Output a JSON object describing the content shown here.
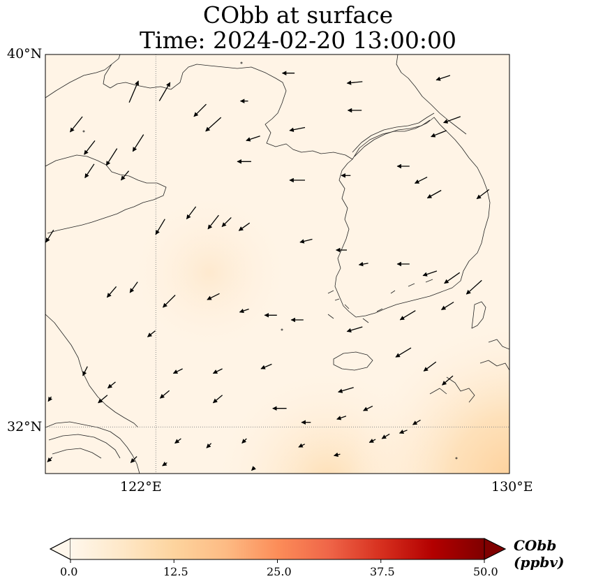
{
  "title": {
    "line1": "CObb at surface",
    "line2": "Time: 2024-02-20 13:00:00"
  },
  "map": {
    "lon_range": [
      119.5,
      130
    ],
    "lat_range": [
      31,
      40
    ],
    "projection": "PlateCarree",
    "gridlines": {
      "lon": [
        122
      ],
      "lat": [
        32
      ],
      "style": "dotted"
    },
    "lon_tick_labels": [
      "122°E",
      "130°E"
    ],
    "lat_tick_labels": [
      "40°N",
      "32°N"
    ],
    "field_background": "#fff4e6",
    "field_highlight": "#fed9a6",
    "wind_vectors": [
      [
        125.0,
        39.6,
        -0.8,
        0.0
      ],
      [
        126.5,
        39.4,
        -1.0,
        -0.1
      ],
      [
        128.5,
        39.5,
        -0.9,
        -0.3
      ],
      [
        124.0,
        39.0,
        -0.5,
        0.0
      ],
      [
        126.5,
        38.8,
        -0.9,
        0.0
      ],
      [
        122.2,
        39.2,
        0.7,
        1.2
      ],
      [
        121.5,
        39.2,
        0.6,
        1.4
      ],
      [
        123.0,
        38.8,
        -0.8,
        -0.8
      ],
      [
        123.3,
        38.5,
        -1.0,
        -0.9
      ],
      [
        128.4,
        38.3,
        -1.0,
        -0.4
      ],
      [
        128.7,
        38.6,
        -1.1,
        -0.4
      ],
      [
        125.2,
        38.4,
        -1.0,
        -0.2
      ],
      [
        124.2,
        38.2,
        -0.9,
        -0.3
      ],
      [
        121.6,
        38.1,
        -0.7,
        -1.1
      ],
      [
        121.0,
        37.8,
        -0.7,
        -1.1
      ],
      [
        120.2,
        38.5,
        -0.8,
        -1.0
      ],
      [
        120.5,
        38.0,
        -0.7,
        -0.9
      ],
      [
        120.5,
        37.5,
        -0.6,
        -0.9
      ],
      [
        121.3,
        37.4,
        -0.5,
        -0.6
      ],
      [
        124.0,
        37.7,
        -0.9,
        0.0
      ],
      [
        125.2,
        37.3,
        -1.0,
        0.0
      ],
      [
        126.3,
        37.4,
        -0.6,
        0.0
      ],
      [
        127.6,
        37.6,
        -0.8,
        0.0
      ],
      [
        128.0,
        37.3,
        -0.8,
        -0.4
      ],
      [
        128.3,
        37.0,
        -0.9,
        -0.5
      ],
      [
        129.4,
        37.0,
        -0.8,
        -0.6
      ],
      [
        123.3,
        36.4,
        -0.7,
        -0.9
      ],
      [
        122.1,
        36.3,
        -0.6,
        -1.0
      ],
      [
        122.8,
        36.6,
        -0.6,
        -0.8
      ],
      [
        123.6,
        36.4,
        -0.6,
        -0.6
      ],
      [
        124.0,
        36.3,
        -0.7,
        -0.5
      ],
      [
        125.4,
        36.0,
        -0.8,
        -0.2
      ],
      [
        126.2,
        35.8,
        -0.7,
        0.0
      ],
      [
        126.7,
        35.5,
        -0.6,
        -0.1
      ],
      [
        127.6,
        35.5,
        -0.8,
        0.0
      ],
      [
        128.2,
        35.3,
        -0.9,
        -0.3
      ],
      [
        129.2,
        35.0,
        -1.0,
        -0.9
      ],
      [
        128.7,
        35.2,
        -1.0,
        -0.7
      ],
      [
        121.5,
        35.0,
        -0.5,
        -0.7
      ],
      [
        121.0,
        34.9,
        -0.6,
        -0.7
      ],
      [
        122.3,
        34.7,
        -0.8,
        -0.8
      ],
      [
        123.3,
        34.8,
        -0.8,
        -0.4
      ],
      [
        124.0,
        34.5,
        -0.6,
        -0.2
      ],
      [
        124.6,
        34.4,
        -0.8,
        0.0
      ],
      [
        125.2,
        34.3,
        -0.8,
        0.0
      ],
      [
        126.5,
        34.1,
        -1.0,
        -0.3
      ],
      [
        127.7,
        34.4,
        -1.0,
        -0.6
      ],
      [
        128.6,
        34.6,
        -0.8,
        -0.5
      ],
      [
        121.9,
        34.0,
        -0.5,
        -0.4
      ],
      [
        122.5,
        33.2,
        -0.6,
        -0.3
      ],
      [
        123.4,
        33.2,
        -0.6,
        -0.3
      ],
      [
        124.5,
        33.3,
        -0.7,
        -0.3
      ],
      [
        126.3,
        32.8,
        -1.0,
        -0.3
      ],
      [
        127.6,
        33.6,
        -1.0,
        -0.6
      ],
      [
        128.2,
        33.3,
        -0.8,
        -0.6
      ],
      [
        128.6,
        33.0,
        -0.7,
        -0.6
      ],
      [
        120.8,
        32.6,
        -0.6,
        -0.5
      ],
      [
        120.4,
        33.2,
        -0.3,
        -0.6
      ],
      [
        121.0,
        32.9,
        -0.5,
        -0.4
      ],
      [
        122.2,
        32.7,
        -0.6,
        -0.5
      ],
      [
        123.4,
        32.6,
        -0.6,
        -0.5
      ],
      [
        124.8,
        32.4,
        -0.9,
        0.0
      ],
      [
        126.2,
        32.2,
        -0.6,
        -0.2
      ],
      [
        126.8,
        32.4,
        -0.6,
        -0.3
      ],
      [
        125.4,
        32.1,
        -0.6,
        0.0
      ],
      [
        127.2,
        31.8,
        -0.5,
        -0.3
      ],
      [
        127.6,
        31.9,
        -0.5,
        -0.2
      ],
      [
        127.9,
        32.1,
        -0.5,
        -0.3
      ],
      [
        122.5,
        31.7,
        -0.4,
        -0.3
      ],
      [
        123.2,
        31.6,
        -0.3,
        -0.3
      ],
      [
        124.0,
        31.7,
        -0.3,
        -0.3
      ],
      [
        125.3,
        31.6,
        -0.4,
        -0.2
      ],
      [
        126.9,
        31.7,
        -0.4,
        -0.2
      ],
      [
        121.5,
        31.3,
        -0.4,
        -0.4
      ],
      [
        124.2,
        31.1,
        -0.2,
        -0.2
      ],
      [
        126.1,
        31.4,
        -0.4,
        -0.1
      ],
      [
        119.6,
        31.3,
        -0.3,
        -0.3
      ],
      [
        119.6,
        32.6,
        -0.2,
        -0.3
      ],
      [
        119.6,
        36.1,
        -0.5,
        -0.8
      ],
      [
        122.2,
        31.2,
        -0.3,
        -0.2
      ]
    ]
  },
  "colorbar": {
    "title": "CObb (ppbv)",
    "vmin": 0,
    "vmax": 50,
    "extend": "both",
    "ticks": [
      "0.0",
      "12.5",
      "25.0",
      "37.5",
      "50.0"
    ],
    "colormap": "OrRd",
    "stops": [
      "#fff7ec",
      "#fee8c8",
      "#fdd49e",
      "#fdbb84",
      "#fc8d59",
      "#ef6548",
      "#d7301f",
      "#b30000",
      "#7f0000"
    ]
  }
}
